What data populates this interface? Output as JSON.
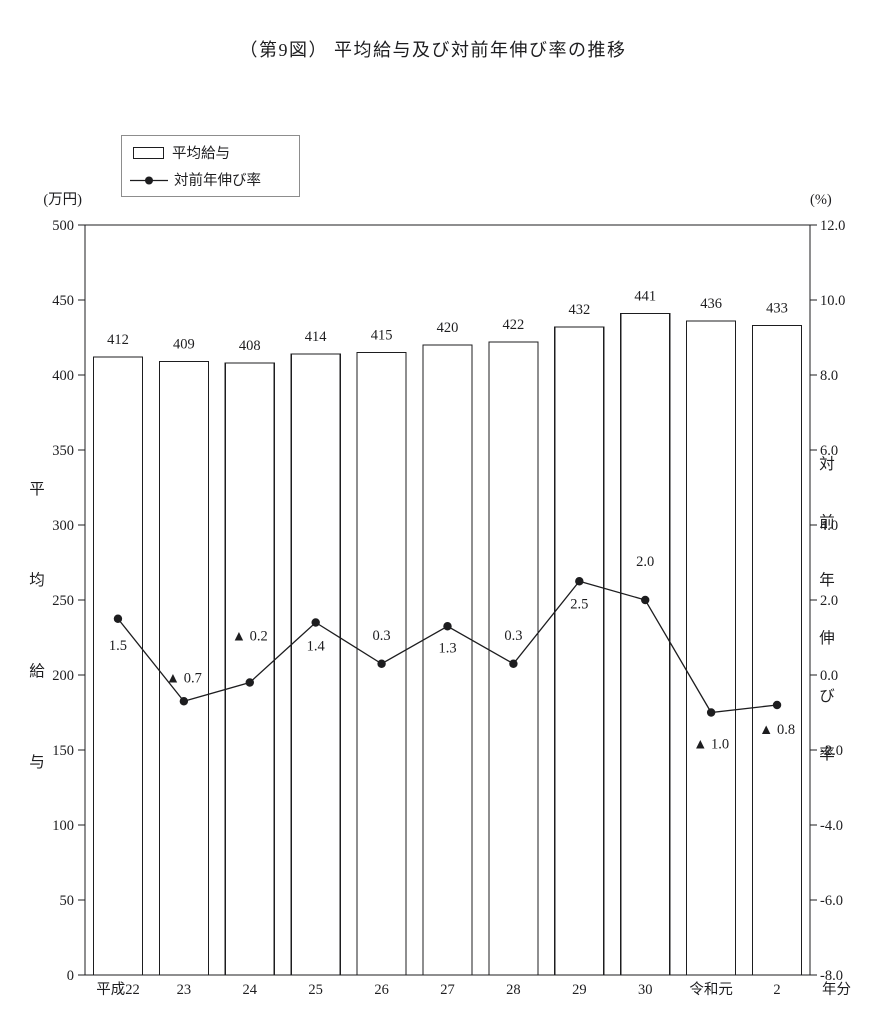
{
  "title": "（第9図） 平均給与及び対前年伸び率の推移",
  "legend": {
    "bar_label": "平均給与",
    "line_label": "対前年伸び率"
  },
  "axes": {
    "left_unit": "(万円)",
    "right_unit": "(%)",
    "left_title": "平均給与",
    "right_title": "対前年伸び率",
    "x_suffix": "年分"
  },
  "chart_data": {
    "type": "bar",
    "secondary_type": "line",
    "title": "（第9図） 平均給与及び対前年伸び率の推移",
    "categories": [
      "平成22",
      "23",
      "24",
      "25",
      "26",
      "27",
      "28",
      "29",
      "30",
      "令和元",
      "2"
    ],
    "series": [
      {
        "name": "平均給与",
        "type": "bar",
        "axis": "left",
        "values": [
          412,
          409,
          408,
          414,
          415,
          420,
          422,
          432,
          441,
          436,
          433
        ]
      },
      {
        "name": "対前年伸び率",
        "type": "line",
        "axis": "right",
        "values": [
          1.5,
          -0.7,
          -0.2,
          1.4,
          0.3,
          1.3,
          0.3,
          2.5,
          2.0,
          -1.0,
          -0.8
        ],
        "point_labels": [
          "1.5",
          "▲ 0.7",
          "▲ 0.2",
          "1.4",
          "0.3",
          "1.3",
          "0.3",
          "2.5",
          "2.0",
          "▲ 1.0",
          "▲ 0.8"
        ],
        "label_offsets": [
          31,
          -19,
          -42,
          28,
          -24,
          26,
          -24,
          27,
          -34,
          36,
          29
        ]
      }
    ],
    "left_axis": {
      "label": "平均給与",
      "unit": "万円",
      "min": 0,
      "max": 500,
      "tick_step": 50,
      "ticks": [
        "500",
        "450",
        "400",
        "350",
        "300",
        "250",
        "200",
        "150",
        "100",
        "50",
        "0"
      ]
    },
    "right_axis": {
      "label": "対前年伸び率",
      "unit": "%",
      "min": -8,
      "max": 12,
      "tick_step": 2,
      "ticks": [
        "12.0",
        "10.0",
        "8.0",
        "6.0",
        "4.0",
        "2.0",
        "0.0",
        "-2.0",
        "-4.0",
        "-6.0",
        "-8.0"
      ]
    },
    "grid": false,
    "legend_position": "top-left",
    "x_suffix": "年分"
  }
}
